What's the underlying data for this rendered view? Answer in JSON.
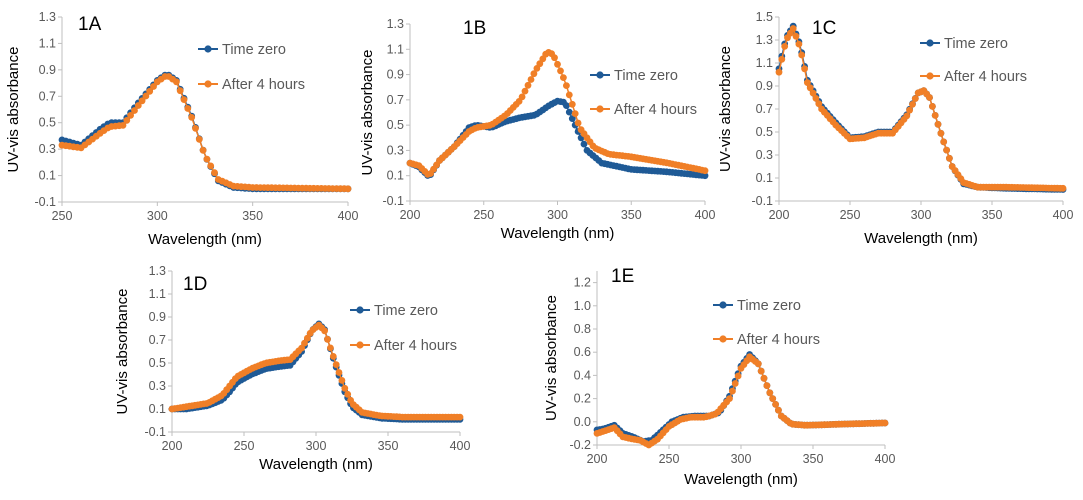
{
  "chart_data": [
    {
      "type": "line",
      "panel_label": "1A",
      "xlabel": "Wavelength (nm)",
      "ylabel": "UV-vis absorbance",
      "xlim": [
        250,
        400
      ],
      "ylim": [
        -0.1,
        1.3
      ],
      "xticks": [
        250,
        300,
        350,
        400
      ],
      "yticks": [
        -0.1,
        0.1,
        0.3,
        0.5,
        0.7,
        0.9,
        1.1,
        1.3
      ],
      "ytick_labels": [
        "-0.1",
        "0.1",
        "0.3",
        "0.5",
        "0.7",
        "0.9",
        "1.1",
        "1.3"
      ],
      "x_step": 2,
      "grid": false,
      "legend_position": "top-right",
      "series": [
        {
          "name": "Time zero",
          "color": "#1f5a96",
          "points": [
            [
              250,
              0.37
            ],
            [
              260,
              0.33
            ],
            [
              270,
              0.45
            ],
            [
              275,
              0.5
            ],
            [
              282,
              0.5
            ],
            [
              290,
              0.65
            ],
            [
              300,
              0.82
            ],
            [
              305,
              0.87
            ],
            [
              310,
              0.82
            ],
            [
              318,
              0.55
            ],
            [
              325,
              0.25
            ],
            [
              332,
              0.06
            ],
            [
              340,
              0.01
            ],
            [
              350,
              0.0
            ],
            [
              400,
              0.0
            ]
          ]
        },
        {
          "name": "After 4 hours",
          "color": "#f07f27",
          "points": [
            [
              250,
              0.33
            ],
            [
              260,
              0.31
            ],
            [
              270,
              0.42
            ],
            [
              275,
              0.47
            ],
            [
              282,
              0.48
            ],
            [
              290,
              0.63
            ],
            [
              300,
              0.81
            ],
            [
              305,
              0.86
            ],
            [
              310,
              0.81
            ],
            [
              318,
              0.54
            ],
            [
              325,
              0.25
            ],
            [
              332,
              0.07
            ],
            [
              340,
              0.02
            ],
            [
              350,
              0.01
            ],
            [
              400,
              0.0
            ]
          ]
        }
      ]
    },
    {
      "type": "line",
      "panel_label": "1B",
      "xlabel": "Wavelength (nm)",
      "ylabel": "UV-vis absorbance",
      "xlim": [
        200,
        400
      ],
      "ylim": [
        -0.1,
        1.3
      ],
      "xticks": [
        200,
        250,
        300,
        350,
        400
      ],
      "yticks": [
        -0.1,
        0.1,
        0.3,
        0.5,
        0.7,
        0.9,
        1.1,
        1.3
      ],
      "ytick_labels": [
        "-0.1",
        "0.1",
        "0.3",
        "0.5",
        "0.7",
        "0.9",
        "1.1",
        "1.3"
      ],
      "x_step": 2,
      "grid": false,
      "legend_position": "right",
      "series": [
        {
          "name": "Time zero",
          "color": "#1f5a96",
          "points": [
            [
              200,
              0.2
            ],
            [
              206,
              0.17
            ],
            [
              213,
              0.09
            ],
            [
              220,
              0.22
            ],
            [
              230,
              0.33
            ],
            [
              240,
              0.48
            ],
            [
              245,
              0.5
            ],
            [
              255,
              0.48
            ],
            [
              265,
              0.53
            ],
            [
              275,
              0.56
            ],
            [
              285,
              0.58
            ],
            [
              295,
              0.66
            ],
            [
              300,
              0.69
            ],
            [
              305,
              0.68
            ],
            [
              312,
              0.5
            ],
            [
              320,
              0.3
            ],
            [
              330,
              0.2
            ],
            [
              350,
              0.15
            ],
            [
              375,
              0.13
            ],
            [
              400,
              0.1
            ]
          ]
        },
        {
          "name": "After 4 hours",
          "color": "#f07f27",
          "points": [
            [
              200,
              0.2
            ],
            [
              206,
              0.18
            ],
            [
              213,
              0.1
            ],
            [
              220,
              0.22
            ],
            [
              230,
              0.33
            ],
            [
              240,
              0.45
            ],
            [
              245,
              0.48
            ],
            [
              255,
              0.5
            ],
            [
              265,
              0.58
            ],
            [
              275,
              0.7
            ],
            [
              285,
              0.93
            ],
            [
              293,
              1.08
            ],
            [
              297,
              1.06
            ],
            [
              305,
              0.85
            ],
            [
              315,
              0.48
            ],
            [
              325,
              0.32
            ],
            [
              335,
              0.27
            ],
            [
              350,
              0.25
            ],
            [
              375,
              0.2
            ],
            [
              400,
              0.14
            ]
          ]
        }
      ]
    },
    {
      "type": "line",
      "panel_label": "1C",
      "xlabel": "Wavelength (nm)",
      "ylabel": "UV-vis absorbance",
      "xlim": [
        200,
        400
      ],
      "ylim": [
        -0.1,
        1.5
      ],
      "xticks": [
        200,
        250,
        300,
        350,
        400
      ],
      "yticks": [
        -0.1,
        0.1,
        0.3,
        0.5,
        0.7,
        0.9,
        1.1,
        1.3,
        1.5
      ],
      "ytick_labels": [
        "-0.1",
        "0.1",
        "0.3",
        "0.5",
        "0.7",
        "0.9",
        "1.1",
        "1.3",
        "1.5"
      ],
      "x_step": 2,
      "grid": false,
      "legend_position": "top-right",
      "series": [
        {
          "name": "Time zero",
          "color": "#1f5a96",
          "points": [
            [
              200,
              1.05
            ],
            [
              205,
              1.32
            ],
            [
              210,
              1.42
            ],
            [
              215,
              1.25
            ],
            [
              220,
              0.95
            ],
            [
              230,
              0.72
            ],
            [
              240,
              0.58
            ],
            [
              250,
              0.45
            ],
            [
              260,
              0.46
            ],
            [
              270,
              0.5
            ],
            [
              280,
              0.5
            ],
            [
              290,
              0.65
            ],
            [
              298,
              0.84
            ],
            [
              302,
              0.86
            ],
            [
              306,
              0.8
            ],
            [
              315,
              0.45
            ],
            [
              322,
              0.2
            ],
            [
              330,
              0.05
            ],
            [
              340,
              0.02
            ],
            [
              360,
              0.01
            ],
            [
              400,
              0.0
            ]
          ]
        },
        {
          "name": "After 4 hours",
          "color": "#f07f27",
          "points": [
            [
              200,
              1.02
            ],
            [
              205,
              1.3
            ],
            [
              210,
              1.4
            ],
            [
              215,
              1.23
            ],
            [
              220,
              0.93
            ],
            [
              230,
              0.7
            ],
            [
              240,
              0.56
            ],
            [
              250,
              0.44
            ],
            [
              260,
              0.45
            ],
            [
              270,
              0.49
            ],
            [
              280,
              0.49
            ],
            [
              290,
              0.64
            ],
            [
              298,
              0.84
            ],
            [
              302,
              0.86
            ],
            [
              306,
              0.8
            ],
            [
              315,
              0.45
            ],
            [
              322,
              0.2
            ],
            [
              330,
              0.06
            ],
            [
              340,
              0.02
            ],
            [
              360,
              0.02
            ],
            [
              400,
              0.01
            ]
          ]
        }
      ]
    },
    {
      "type": "line",
      "panel_label": "1D",
      "xlabel": "Wavelength (nm)",
      "ylabel": "UV-vis absorbance",
      "xlim": [
        200,
        400
      ],
      "ylim": [
        -0.1,
        1.3
      ],
      "xticks": [
        200,
        250,
        300,
        350,
        400
      ],
      "yticks": [
        -0.1,
        0.1,
        0.3,
        0.5,
        0.7,
        0.9,
        1.1,
        1.3
      ],
      "ytick_labels": [
        "-0.1",
        "0.1",
        "0.3",
        "0.5",
        "0.7",
        "0.9",
        "1.1",
        "1.3"
      ],
      "x_step": 2,
      "grid": false,
      "legend_position": "right",
      "series": [
        {
          "name": "Time zero",
          "color": "#1f5a96",
          "points": [
            [
              200,
              0.1
            ],
            [
              210,
              0.1
            ],
            [
              225,
              0.13
            ],
            [
              235,
              0.18
            ],
            [
              240,
              0.25
            ],
            [
              245,
              0.33
            ],
            [
              255,
              0.4
            ],
            [
              265,
              0.45
            ],
            [
              275,
              0.47
            ],
            [
              282,
              0.48
            ],
            [
              290,
              0.6
            ],
            [
              297,
              0.78
            ],
            [
              302,
              0.84
            ],
            [
              306,
              0.79
            ],
            [
              313,
              0.5
            ],
            [
              320,
              0.25
            ],
            [
              325,
              0.12
            ],
            [
              332,
              0.05
            ],
            [
              345,
              0.02
            ],
            [
              360,
              0.01
            ],
            [
              400,
              0.01
            ]
          ]
        },
        {
          "name": "After 4 hours",
          "color": "#f07f27",
          "points": [
            [
              200,
              0.1
            ],
            [
              210,
              0.12
            ],
            [
              225,
              0.15
            ],
            [
              235,
              0.22
            ],
            [
              240,
              0.3
            ],
            [
              245,
              0.38
            ],
            [
              255,
              0.45
            ],
            [
              265,
              0.5
            ],
            [
              275,
              0.52
            ],
            [
              282,
              0.53
            ],
            [
              290,
              0.63
            ],
            [
              297,
              0.78
            ],
            [
              302,
              0.83
            ],
            [
              306,
              0.78
            ],
            [
              313,
              0.52
            ],
            [
              320,
              0.28
            ],
            [
              325,
              0.15
            ],
            [
              332,
              0.07
            ],
            [
              345,
              0.04
            ],
            [
              360,
              0.03
            ],
            [
              400,
              0.03
            ]
          ]
        }
      ]
    },
    {
      "type": "line",
      "panel_label": "1E",
      "xlabel": "Wavelength (nm)",
      "ylabel": "UV-vis absorbance",
      "xlim": [
        200,
        400
      ],
      "ylim": [
        -0.2,
        1.3
      ],
      "xticks": [
        200,
        250,
        300,
        350,
        400
      ],
      "yticks": [
        -0.2,
        0.0,
        0.2,
        0.4,
        0.6,
        0.8,
        1.0,
        1.2
      ],
      "ytick_labels": [
        "-0.2",
        "0.0",
        "0.2",
        "0.4",
        "0.6",
        "0.8",
        "1.0",
        "1.2"
      ],
      "x_step": 2,
      "grid": false,
      "legend_position": "top-center",
      "series": [
        {
          "name": "Time zero",
          "color": "#1f5a96",
          "points": [
            [
              200,
              -0.07
            ],
            [
              205,
              -0.06
            ],
            [
              212,
              -0.03
            ],
            [
              218,
              -0.1
            ],
            [
              225,
              -0.13
            ],
            [
              232,
              -0.17
            ],
            [
              238,
              -0.16
            ],
            [
              245,
              -0.08
            ],
            [
              252,
              0.0
            ],
            [
              260,
              0.04
            ],
            [
              268,
              0.05
            ],
            [
              278,
              0.05
            ],
            [
              285,
              0.08
            ],
            [
              292,
              0.22
            ],
            [
              300,
              0.48
            ],
            [
              306,
              0.58
            ],
            [
              312,
              0.5
            ],
            [
              320,
              0.25
            ],
            [
              328,
              0.05
            ],
            [
              335,
              -0.02
            ],
            [
              345,
              -0.03
            ],
            [
              370,
              -0.02
            ],
            [
              400,
              -0.01
            ]
          ]
        },
        {
          "name": "After 4 hours",
          "color": "#f07f27",
          "points": [
            [
              200,
              -0.1
            ],
            [
              205,
              -0.08
            ],
            [
              212,
              -0.05
            ],
            [
              218,
              -0.13
            ],
            [
              225,
              -0.15
            ],
            [
              230,
              -0.16
            ],
            [
              236,
              -0.2
            ],
            [
              242,
              -0.15
            ],
            [
              250,
              -0.04
            ],
            [
              258,
              0.02
            ],
            [
              265,
              0.04
            ],
            [
              275,
              0.04
            ],
            [
              283,
              0.07
            ],
            [
              292,
              0.2
            ],
            [
              300,
              0.46
            ],
            [
              306,
              0.56
            ],
            [
              312,
              0.5
            ],
            [
              320,
              0.25
            ],
            [
              328,
              0.05
            ],
            [
              335,
              -0.02
            ],
            [
              345,
              -0.03
            ],
            [
              370,
              -0.02
            ],
            [
              400,
              -0.01
            ]
          ]
        }
      ]
    }
  ]
}
